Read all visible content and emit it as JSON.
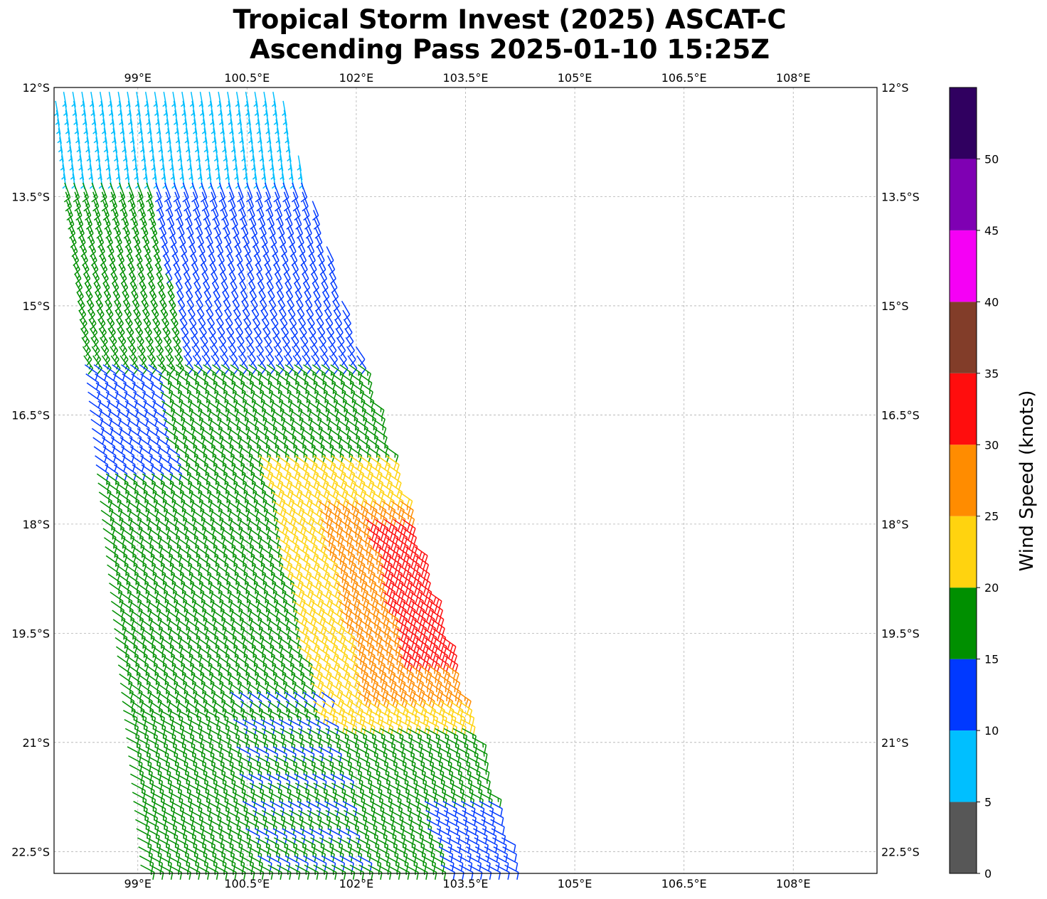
{
  "chart_data": {
    "type": "wind-barb-map",
    "title": "Tropical Storm Invest (2025) ASCAT-C",
    "subtitle": "Ascending Pass 2025-01-10 15:25Z",
    "x_ticks": [
      "99°E",
      "100.5°E",
      "102°E",
      "103.5°E",
      "105°E",
      "106.5°E",
      "108°E"
    ],
    "x_tick_values": [
      99,
      100.5,
      102,
      103.5,
      105,
      106.5,
      108
    ],
    "y_ticks": [
      "12°S",
      "13.5°S",
      "15°S",
      "16.5°S",
      "18°S",
      "19.5°S",
      "21°S",
      "22.5°S"
    ],
    "y_tick_values": [
      -12,
      -13.5,
      -15,
      -16.5,
      -18,
      -19.5,
      -21,
      -22.5
    ],
    "xlim": [
      97.85,
      109.15
    ],
    "ylim": [
      -22.8,
      -12
    ],
    "grid": true,
    "colorbar": {
      "label": "Wind Speed (knots)",
      "range": [
        0,
        55
      ],
      "tick_values": [
        0,
        5,
        10,
        15,
        20,
        25,
        30,
        35,
        40,
        45,
        50
      ],
      "tick_labels": [
        "0",
        "5",
        "10",
        "15",
        "20",
        "25",
        "30",
        "35",
        "40",
        "45",
        "50"
      ],
      "bins": [
        {
          "min": 0,
          "max": 5,
          "color": "#575757"
        },
        {
          "min": 5,
          "max": 10,
          "color": "#00bfff"
        },
        {
          "min": 10,
          "max": 15,
          "color": "#0039ff"
        },
        {
          "min": 15,
          "max": 20,
          "color": "#008f00"
        },
        {
          "min": 20,
          "max": 25,
          "color": "#ffd30f"
        },
        {
          "min": 25,
          "max": 30,
          "color": "#ff8c00"
        },
        {
          "min": 30,
          "max": 35,
          "color": "#ff0d0d"
        },
        {
          "min": 35,
          "max": 40,
          "color": "#823d29"
        },
        {
          "min": 40,
          "max": 45,
          "color": "#f500f5"
        },
        {
          "min": 45,
          "max": 50,
          "color": "#7f00b3"
        },
        {
          "min": 50,
          "max": 55,
          "color": "#300060"
        }
      ]
    },
    "swath": {
      "top_lat": -12.0,
      "bottom_lat": -22.8,
      "west_lon_top": 97.85,
      "east_lon_top": 100.95,
      "west_lon_bottom": 99.05,
      "east_lon_bottom": 104.15,
      "lat_step": 0.125,
      "lon_step": 0.125
    },
    "wind_regions": [
      {
        "lat_min": -14.2,
        "lat_max": -12.0,
        "speed_kt": 8,
        "dir_deg": 165,
        "note": "north edge light winds"
      },
      {
        "lat_min": -16.0,
        "lat_max": -12.8,
        "speed_kt": 13,
        "dir_deg": 160
      },
      {
        "lat_min": -17.5,
        "lat_max": -14.0,
        "speed_kt": 17,
        "dir_deg": 140
      },
      {
        "lat_min": -20.5,
        "lat_max": -17.0,
        "speed_kt": 17,
        "dir_deg": 120
      },
      {
        "lat_min": -22.8,
        "lat_max": -20.5,
        "speed_kt": 16,
        "dir_deg": 115
      },
      {
        "lat_min": -20.6,
        "lat_max": -17.2,
        "speed_kt": 23,
        "dir_deg": 115
      },
      {
        "lat_min": -20.3,
        "lat_max": -17.5,
        "speed_kt": 28,
        "dir_deg": 110
      },
      {
        "lat_min": -19.8,
        "lat_max": -18.0,
        "speed_kt": 32,
        "dir_deg": 105
      }
    ]
  }
}
